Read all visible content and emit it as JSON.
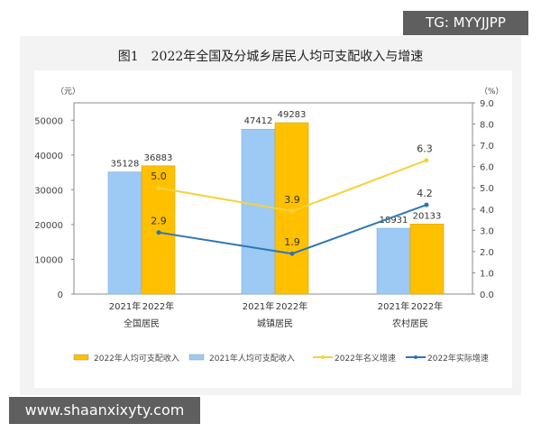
{
  "watermarks": {
    "top": "TG: MYYJJPP",
    "bottom": "www.shaanxixyty.com"
  },
  "chart_data": {
    "type": "bar",
    "title": "图1　2022年全国及分城乡居民人均可支配收入与增速",
    "ylabel": "（元）",
    "y2label": "（%）",
    "ylim": [
      0,
      55000
    ],
    "y2lim": [
      0,
      9
    ],
    "yticks": [
      0,
      10000,
      20000,
      30000,
      40000,
      50000
    ],
    "y2ticks": [
      "0.0",
      "1.0",
      "2.0",
      "3.0",
      "4.0",
      "5.0",
      "6.0",
      "7.0",
      "8.0",
      "9.0"
    ],
    "categories": [
      "全国居民",
      "城镇居民",
      "农村居民"
    ],
    "bar_sublabels": [
      "2021年",
      "2022年"
    ],
    "series": [
      {
        "name": "2021年人均可支配收入",
        "type": "bar",
        "color": "#9dc9f5",
        "values": [
          35128,
          47412,
          18931
        ]
      },
      {
        "name": "2022年人均可支配收入",
        "type": "bar",
        "color": "#ffc000",
        "values": [
          36883,
          49283,
          20133
        ]
      },
      {
        "name": "2022年名义增速",
        "type": "line",
        "axis": "right",
        "color": "#f5d33b",
        "values": [
          5.0,
          3.9,
          6.3
        ]
      },
      {
        "name": "2022年实际增速",
        "type": "line",
        "axis": "right",
        "color": "#2e75b6",
        "values": [
          2.9,
          1.9,
          4.2
        ]
      }
    ],
    "legend": "bottom"
  }
}
